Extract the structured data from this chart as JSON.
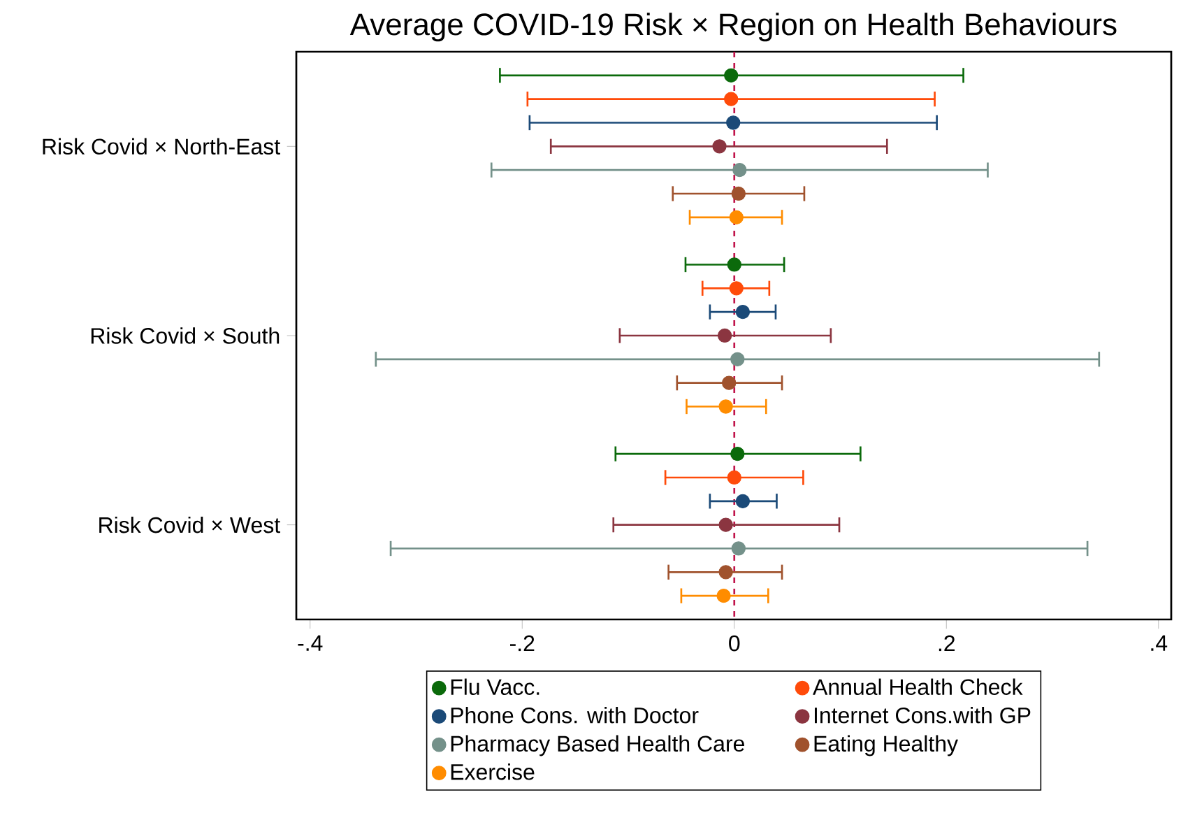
{
  "chart_data": {
    "type": "scatter",
    "orientation": "horizontal",
    "title": "Average COVID-19 Risk × Region on Health Behaviours",
    "categories": [
      "Risk Covid × North-East",
      "Risk Covid × South",
      "Risk Covid × West"
    ],
    "series": [
      {
        "name": "Flu Vacc.",
        "color": "#0b6a0b",
        "values": [
          -0.003,
          0.0,
          0.003
        ],
        "errors": [
          [
            -0.221,
            0.216
          ],
          [
            -0.046,
            0.047
          ],
          [
            -0.112,
            0.119
          ]
        ]
      },
      {
        "name": "Annual Health Check",
        "color": "#ff4b0a",
        "values": [
          -0.003,
          0.002,
          0.0
        ],
        "errors": [
          [
            -0.195,
            0.189
          ],
          [
            -0.03,
            0.033
          ],
          [
            -0.065,
            0.065
          ]
        ]
      },
      {
        "name": "Phone Cons. with Doctor",
        "color": "#1b4a78",
        "values": [
          -0.001,
          0.008,
          0.008
        ],
        "errors": [
          [
            -0.193,
            0.191
          ],
          [
            -0.023,
            0.039
          ],
          [
            -0.023,
            0.04
          ]
        ]
      },
      {
        "name": "Internet Cons.with GP",
        "color": "#8b3540",
        "values": [
          -0.014,
          -0.009,
          -0.008
        ],
        "errors": [
          [
            -0.173,
            0.144
          ],
          [
            -0.108,
            0.091
          ],
          [
            -0.114,
            0.099
          ]
        ]
      },
      {
        "name": "Pharmacy Based Health Care",
        "color": "#74918a",
        "values": [
          0.005,
          0.003,
          0.004
        ],
        "errors": [
          [
            -0.229,
            0.239
          ],
          [
            -0.338,
            0.344
          ],
          [
            -0.324,
            0.333
          ]
        ]
      },
      {
        "name": "Eating Healthy",
        "color": "#a0522d",
        "values": [
          0.004,
          -0.005,
          -0.008
        ],
        "errors": [
          [
            -0.058,
            0.066
          ],
          [
            -0.054,
            0.045
          ],
          [
            -0.062,
            0.045
          ]
        ]
      },
      {
        "name": "Exercise",
        "color": "#ff8c00",
        "values": [
          0.002,
          -0.008,
          -0.01
        ],
        "errors": [
          [
            -0.042,
            0.045
          ],
          [
            -0.045,
            0.03
          ],
          [
            -0.05,
            0.032
          ]
        ]
      }
    ],
    "xlim": [
      -0.413,
      0.412
    ],
    "xticks": [
      {
        "value": -0.4,
        "label": "-.4"
      },
      {
        "value": -0.2,
        "label": "-.2"
      },
      0,
      {
        "value": 0.2,
        "label": ".2"
      },
      {
        "value": 0.4,
        "label": ".4"
      }
    ],
    "ref_lines": [
      {
        "axis": "x",
        "value": 0,
        "color": "#c0134a",
        "line_style": "dashed"
      }
    ],
    "marker": "circle",
    "legend": "bottom"
  }
}
